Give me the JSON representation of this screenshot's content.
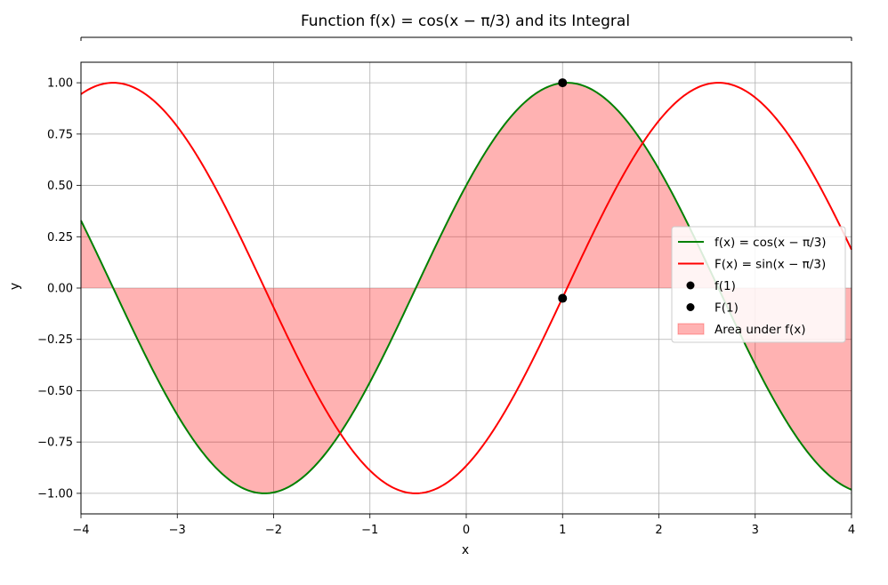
{
  "chart_data": {
    "type": "line",
    "title": "Function f(x) = cos(x − π/3) and its Integral",
    "xlabel": "x",
    "ylabel": "y",
    "xlim": [
      -4,
      4
    ],
    "ylim": [
      -1.1,
      1.1
    ],
    "x_ticks": [
      "−4",
      "−3",
      "−2",
      "−1",
      "0",
      "1",
      "2",
      "3",
      "4"
    ],
    "y_ticks": [
      "−1.00",
      "−0.75",
      "−0.50",
      "−0.25",
      "0.00",
      "0.25",
      "0.50",
      "0.75",
      "1.00"
    ],
    "grid": true,
    "legend_position": "right",
    "series": [
      {
        "name": "f(x) = cos(x − π/3)",
        "type": "line",
        "color": "#008000",
        "function": "cos(x - pi/3)"
      },
      {
        "name": "F(x) = sin(x − π/3)",
        "type": "line",
        "color": "#ff0000",
        "function": "sin(x - pi/3)"
      },
      {
        "name": "f(1)",
        "type": "point",
        "color": "#000000",
        "x": 1,
        "y": 1.0
      },
      {
        "name": "F(1)",
        "type": "point",
        "color": "#000000",
        "x": 1,
        "y": -0.05
      },
      {
        "name": "Area under f(x)",
        "type": "area",
        "color": "#ff0000",
        "alpha": 0.3,
        "function": "cos(x - pi/3)"
      }
    ],
    "legend": [
      {
        "label": "f(x) = cos(x − π/3)",
        "kind": "line",
        "color": "#008000"
      },
      {
        "label": "F(x) = sin(x − π/3)",
        "kind": "line",
        "color": "#ff0000"
      },
      {
        "label": "f(1)",
        "kind": "marker",
        "color": "#000000"
      },
      {
        "label": "F(1)",
        "kind": "marker",
        "color": "#000000"
      },
      {
        "label": "Area under f(x)",
        "kind": "patch",
        "color": "#ff0000"
      }
    ]
  }
}
